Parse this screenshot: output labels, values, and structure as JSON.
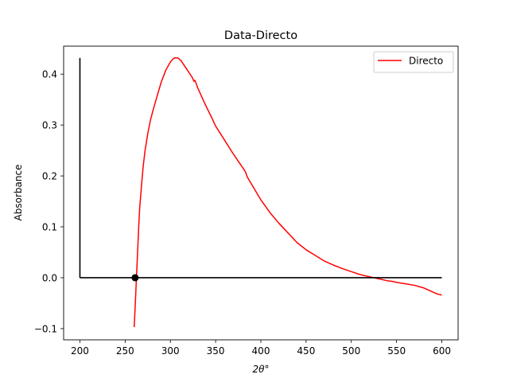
{
  "chart_data": {
    "type": "line",
    "title": "Data-Directo",
    "xlabel": "2θ°",
    "ylabel": "Absorbance",
    "xlim": [
      182,
      618
    ],
    "ylim": [
      -0.122,
      0.455
    ],
    "xticks": [
      200,
      250,
      300,
      350,
      400,
      450,
      500,
      550,
      600
    ],
    "yticks": [
      -0.1,
      0.0,
      0.1,
      0.2,
      0.3,
      0.4
    ],
    "xtick_labels": [
      "200",
      "250",
      "300",
      "350",
      "400",
      "450",
      "500",
      "550",
      "600"
    ],
    "ytick_labels": [
      "−0.1",
      "0.0",
      "0.1",
      "0.2",
      "0.3",
      "0.4"
    ],
    "grid": false,
    "legend": {
      "location": "top-right",
      "entries": [
        {
          "label": "Directo",
          "color": "#ff0000"
        }
      ]
    },
    "series": [
      {
        "name": "Directo",
        "color": "#ff0000",
        "x": [
          260,
          261,
          262,
          263,
          264,
          265,
          266,
          268,
          270,
          272,
          275,
          278,
          281,
          285,
          290,
          295,
          300,
          303,
          305,
          307,
          309,
          312,
          315,
          318,
          321,
          324,
          325,
          326,
          327,
          328,
          330,
          335,
          340,
          345,
          350,
          360,
          370,
          380,
          383,
          385,
          390,
          400,
          410,
          420,
          430,
          440,
          450,
          460,
          470,
          480,
          490,
          500,
          510,
          520,
          530,
          540,
          545,
          550,
          560,
          570,
          580,
          585,
          590,
          595,
          600
        ],
        "y": [
          -0.097,
          -0.06,
          -0.02,
          0.02,
          0.06,
          0.1,
          0.135,
          0.18,
          0.22,
          0.25,
          0.283,
          0.31,
          0.33,
          0.355,
          0.385,
          0.408,
          0.424,
          0.43,
          0.432,
          0.432,
          0.431,
          0.426,
          0.418,
          0.41,
          0.402,
          0.394,
          0.39,
          0.386,
          0.388,
          0.384,
          0.374,
          0.354,
          0.335,
          0.317,
          0.298,
          0.27,
          0.242,
          0.216,
          0.208,
          0.198,
          0.183,
          0.153,
          0.128,
          0.107,
          0.088,
          0.069,
          0.055,
          0.044,
          0.033,
          0.025,
          0.018,
          0.012,
          0.006,
          0.002,
          -0.002,
          -0.006,
          -0.007,
          -0.009,
          -0.012,
          -0.015,
          -0.02,
          -0.024,
          -0.028,
          -0.032,
          -0.034
        ]
      },
      {
        "name": "",
        "color": "#000000",
        "x": [
          200,
          200
        ],
        "y": [
          0.432,
          0.0
        ]
      },
      {
        "name": "",
        "color": "#000000",
        "x": [
          200,
          600
        ],
        "y": [
          0.0,
          0.0
        ]
      }
    ],
    "markers": [
      {
        "x": 261,
        "y": 0.0,
        "color": "#000000"
      }
    ]
  }
}
